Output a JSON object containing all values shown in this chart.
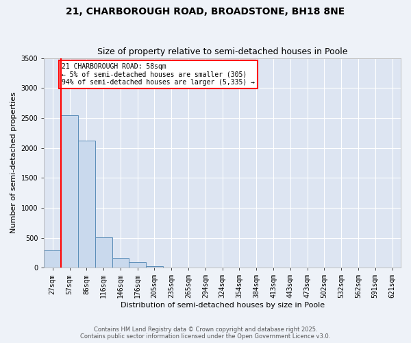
{
  "title_line1": "21, CHARBOROUGH ROAD, BROADSTONE, BH18 8NE",
  "title_line2": "Size of property relative to semi-detached houses in Poole",
  "xlabel": "Distribution of semi-detached houses by size in Poole",
  "ylabel": "Number of semi-detached properties",
  "categories": [
    "27sqm",
    "57sqm",
    "86sqm",
    "116sqm",
    "146sqm",
    "176sqm",
    "205sqm",
    "235sqm",
    "265sqm",
    "294sqm",
    "324sqm",
    "354sqm",
    "384sqm",
    "413sqm",
    "443sqm",
    "473sqm",
    "502sqm",
    "532sqm",
    "562sqm",
    "591sqm",
    "621sqm"
  ],
  "values": [
    290,
    2540,
    2120,
    510,
    160,
    90,
    30,
    5,
    0,
    0,
    0,
    0,
    0,
    0,
    0,
    0,
    0,
    0,
    0,
    0,
    0
  ],
  "bar_color": "#c9d9ed",
  "bar_edge_color": "#5b8db8",
  "highlight_line_color": "red",
  "annotation_title": "21 CHARBOROUGH ROAD: 58sqm",
  "annotation_line1": "← 5% of semi-detached houses are smaller (305)",
  "annotation_line2": "94% of semi-detached houses are larger (5,335) →",
  "ylim": [
    0,
    3500
  ],
  "yticks": [
    0,
    500,
    1000,
    1500,
    2000,
    2500,
    3000,
    3500
  ],
  "background_color": "#eef2f8",
  "plot_bg_color": "#dde5f2",
  "grid_color": "white",
  "footer_line1": "Contains HM Land Registry data © Crown copyright and database right 2025.",
  "footer_line2": "Contains public sector information licensed under the Open Government Licence v3.0.",
  "title_fontsize": 10,
  "subtitle_fontsize": 9,
  "axis_label_fontsize": 8,
  "tick_fontsize": 7,
  "annotation_fontsize": 7,
  "footer_fontsize": 6
}
